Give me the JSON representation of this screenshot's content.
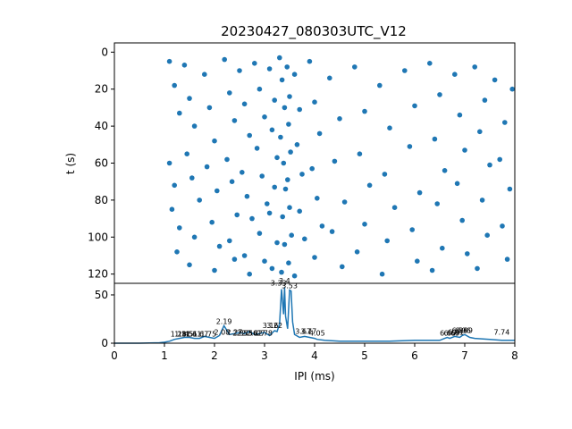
{
  "chart_data": [
    {
      "type": "scatter",
      "title": "20230427_080303UTC_V12",
      "xlabel": "",
      "ylabel": "t (s)",
      "xlim": [
        0,
        8
      ],
      "ylim": [
        125,
        -5
      ],
      "y_inverted": true,
      "yticks": [
        0,
        20,
        40,
        60,
        80,
        100,
        120
      ],
      "marker_color": "#1f77b4",
      "points": [
        [
          1.1,
          5
        ],
        [
          1.2,
          18
        ],
        [
          1.3,
          33
        ],
        [
          1.1,
          60
        ],
        [
          1.2,
          72
        ],
        [
          1.15,
          85
        ],
        [
          1.3,
          95
        ],
        [
          1.25,
          108
        ],
        [
          1.4,
          7
        ],
        [
          1.5,
          25
        ],
        [
          1.6,
          40
        ],
        [
          1.45,
          55
        ],
        [
          1.55,
          68
        ],
        [
          1.7,
          80
        ],
        [
          1.6,
          100
        ],
        [
          1.5,
          115
        ],
        [
          1.8,
          12
        ],
        [
          1.9,
          30
        ],
        [
          2.0,
          48
        ],
        [
          1.85,
          62
        ],
        [
          2.05,
          75
        ],
        [
          1.95,
          92
        ],
        [
          2.1,
          105
        ],
        [
          2.0,
          118
        ],
        [
          2.2,
          4
        ],
        [
          2.3,
          22
        ],
        [
          2.4,
          37
        ],
        [
          2.25,
          58
        ],
        [
          2.35,
          70
        ],
        [
          2.45,
          88
        ],
        [
          2.3,
          102
        ],
        [
          2.4,
          112
        ],
        [
          2.5,
          10
        ],
        [
          2.6,
          28
        ],
        [
          2.7,
          45
        ],
        [
          2.55,
          65
        ],
        [
          2.65,
          78
        ],
        [
          2.75,
          90
        ],
        [
          2.6,
          110
        ],
        [
          2.7,
          120
        ],
        [
          2.8,
          6
        ],
        [
          2.9,
          20
        ],
        [
          3.0,
          35
        ],
        [
          2.85,
          52
        ],
        [
          2.95,
          67
        ],
        [
          3.05,
          82
        ],
        [
          2.9,
          98
        ],
        [
          3.0,
          113
        ],
        [
          3.1,
          9
        ],
        [
          3.2,
          26
        ],
        [
          3.15,
          42
        ],
        [
          3.25,
          57
        ],
        [
          3.2,
          73
        ],
        [
          3.1,
          87
        ],
        [
          3.25,
          103
        ],
        [
          3.15,
          117
        ],
        [
          3.3,
          3
        ],
        [
          3.35,
          15
        ],
        [
          3.4,
          30
        ],
        [
          3.32,
          46
        ],
        [
          3.38,
          60
        ],
        [
          3.42,
          74
        ],
        [
          3.36,
          89
        ],
        [
          3.4,
          104
        ],
        [
          3.34,
          119
        ],
        [
          3.45,
          8
        ],
        [
          3.5,
          24
        ],
        [
          3.48,
          39
        ],
        [
          3.52,
          54
        ],
        [
          3.46,
          69
        ],
        [
          3.5,
          84
        ],
        [
          3.54,
          99
        ],
        [
          3.48,
          114
        ],
        [
          3.6,
          12
        ],
        [
          3.7,
          31
        ],
        [
          3.65,
          50
        ],
        [
          3.75,
          66
        ],
        [
          3.7,
          86
        ],
        [
          3.8,
          101
        ],
        [
          3.6,
          121
        ],
        [
          3.9,
          5
        ],
        [
          4.0,
          27
        ],
        [
          4.1,
          44
        ],
        [
          3.95,
          63
        ],
        [
          4.05,
          79
        ],
        [
          4.15,
          94
        ],
        [
          4.0,
          111
        ],
        [
          4.3,
          14
        ],
        [
          4.5,
          36
        ],
        [
          4.4,
          59
        ],
        [
          4.6,
          81
        ],
        [
          4.35,
          97
        ],
        [
          4.55,
          116
        ],
        [
          4.8,
          8
        ],
        [
          5.0,
          32
        ],
        [
          4.9,
          55
        ],
        [
          5.1,
          72
        ],
        [
          5.0,
          93
        ],
        [
          4.85,
          108
        ],
        [
          5.3,
          18
        ],
        [
          5.5,
          41
        ],
        [
          5.4,
          66
        ],
        [
          5.6,
          84
        ],
        [
          5.45,
          102
        ],
        [
          5.35,
          120
        ],
        [
          5.8,
          10
        ],
        [
          6.0,
          29
        ],
        [
          5.9,
          51
        ],
        [
          6.1,
          76
        ],
        [
          5.95,
          96
        ],
        [
          6.05,
          113
        ],
        [
          6.3,
          6
        ],
        [
          6.5,
          23
        ],
        [
          6.4,
          47
        ],
        [
          6.6,
          64
        ],
        [
          6.45,
          82
        ],
        [
          6.55,
          106
        ],
        [
          6.35,
          118
        ],
        [
          6.8,
          12
        ],
        [
          6.9,
          34
        ],
        [
          7.0,
          53
        ],
        [
          6.85,
          71
        ],
        [
          6.95,
          91
        ],
        [
          7.05,
          109
        ],
        [
          7.2,
          8
        ],
        [
          7.4,
          26
        ],
        [
          7.3,
          43
        ],
        [
          7.5,
          61
        ],
        [
          7.35,
          80
        ],
        [
          7.45,
          99
        ],
        [
          7.25,
          117
        ],
        [
          7.6,
          15
        ],
        [
          7.8,
          38
        ],
        [
          7.7,
          58
        ],
        [
          7.9,
          74
        ],
        [
          7.75,
          94
        ],
        [
          7.85,
          112
        ],
        [
          7.95,
          20
        ]
      ]
    },
    {
      "type": "line",
      "xlabel": "IPI (ms)",
      "ylabel": "",
      "xlim": [
        0,
        8
      ],
      "ylim": [
        0,
        62
      ],
      "xticks": [
        0,
        1,
        2,
        3,
        4,
        5,
        6,
        7,
        8
      ],
      "yticks": [
        0,
        50
      ],
      "line_color": "#1f77b4",
      "x": [
        0,
        0.5,
        0.9,
        1.0,
        1.1,
        1.2,
        1.3,
        1.4,
        1.5,
        1.6,
        1.7,
        1.8,
        1.9,
        2.0,
        2.1,
        2.19,
        2.3,
        2.4,
        2.5,
        2.6,
        2.7,
        2.8,
        2.9,
        3.0,
        3.1,
        3.2,
        3.25,
        3.3,
        3.34,
        3.38,
        3.4,
        3.42,
        3.46,
        3.5,
        3.53,
        3.56,
        3.6,
        3.7,
        3.8,
        3.9,
        4.0,
        4.05,
        4.2,
        4.5,
        5.0,
        5.5,
        6.0,
        6.5,
        6.6,
        6.65,
        6.7,
        6.8,
        6.9,
        6.95,
        7.0,
        7.1,
        7.2,
        7.5,
        7.74,
        8.0
      ],
      "y": [
        0,
        0,
        0.5,
        1,
        2,
        4,
        5,
        6,
        6,
        5,
        5,
        7,
        6,
        5,
        8,
        18,
        9,
        10,
        11,
        10,
        12,
        9,
        10,
        11,
        8,
        13,
        12,
        20,
        56,
        30,
        58,
        28,
        15,
        55,
        54,
        22,
        9,
        6,
        7,
        6,
        5,
        4,
        3,
        2,
        2,
        2,
        3,
        3,
        5,
        6,
        5,
        7,
        6,
        8,
        9,
        6,
        5,
        4,
        3,
        3
      ],
      "peak_labels": [
        {
          "x": 1.28,
          "y": 5,
          "label": "1.28"
        },
        {
          "x": 1.36,
          "y": 5,
          "label": "1.31"
        },
        {
          "x": 1.42,
          "y": 5,
          "label": "1.45"
        },
        {
          "x": 1.5,
          "y": 5,
          "label": "1.51"
        },
        {
          "x": 1.58,
          "y": 5,
          "label": "1.61"
        },
        {
          "x": 1.72,
          "y": 5,
          "label": "1.67"
        },
        {
          "x": 1.88,
          "y": 5,
          "label": "1.75"
        },
        {
          "x": 2.19,
          "y": 18,
          "label": "2.19"
        },
        {
          "x": 2.15,
          "y": 7,
          "label": "2.08"
        },
        {
          "x": 2.4,
          "y": 7,
          "label": "2.27"
        },
        {
          "x": 2.52,
          "y": 6,
          "label": "2.37"
        },
        {
          "x": 2.6,
          "y": 6,
          "label": "2.53"
        },
        {
          "x": 2.7,
          "y": 6,
          "label": "2.56"
        },
        {
          "x": 2.8,
          "y": 6,
          "label": "2.62"
        },
        {
          "x": 2.9,
          "y": 6,
          "label": "2.7"
        },
        {
          "x": 3.0,
          "y": 6,
          "label": "2.78"
        },
        {
          "x": 3.12,
          "y": 14,
          "label": "3.16"
        },
        {
          "x": 3.2,
          "y": 14,
          "label": "3.22"
        },
        {
          "x": 3.28,
          "y": 58,
          "label": "3.33"
        },
        {
          "x": 3.4,
          "y": 60,
          "label": "3.4"
        },
        {
          "x": 3.5,
          "y": 55,
          "label": "3.53"
        },
        {
          "x": 3.77,
          "y": 8,
          "label": "3.67"
        },
        {
          "x": 3.88,
          "y": 8,
          "label": "3.77"
        },
        {
          "x": 4.05,
          "y": 6,
          "label": "4.05"
        },
        {
          "x": 6.66,
          "y": 6,
          "label": "6.66"
        },
        {
          "x": 6.74,
          "y": 6,
          "label": "6.69"
        },
        {
          "x": 6.82,
          "y": 7,
          "label": "6.81"
        },
        {
          "x": 6.9,
          "y": 9,
          "label": "6.86"
        },
        {
          "x": 6.96,
          "y": 9,
          "label": "6.96"
        },
        {
          "x": 7.0,
          "y": 9,
          "label": "6.99"
        },
        {
          "x": 7.74,
          "y": 7,
          "label": "7.74"
        }
      ]
    }
  ]
}
